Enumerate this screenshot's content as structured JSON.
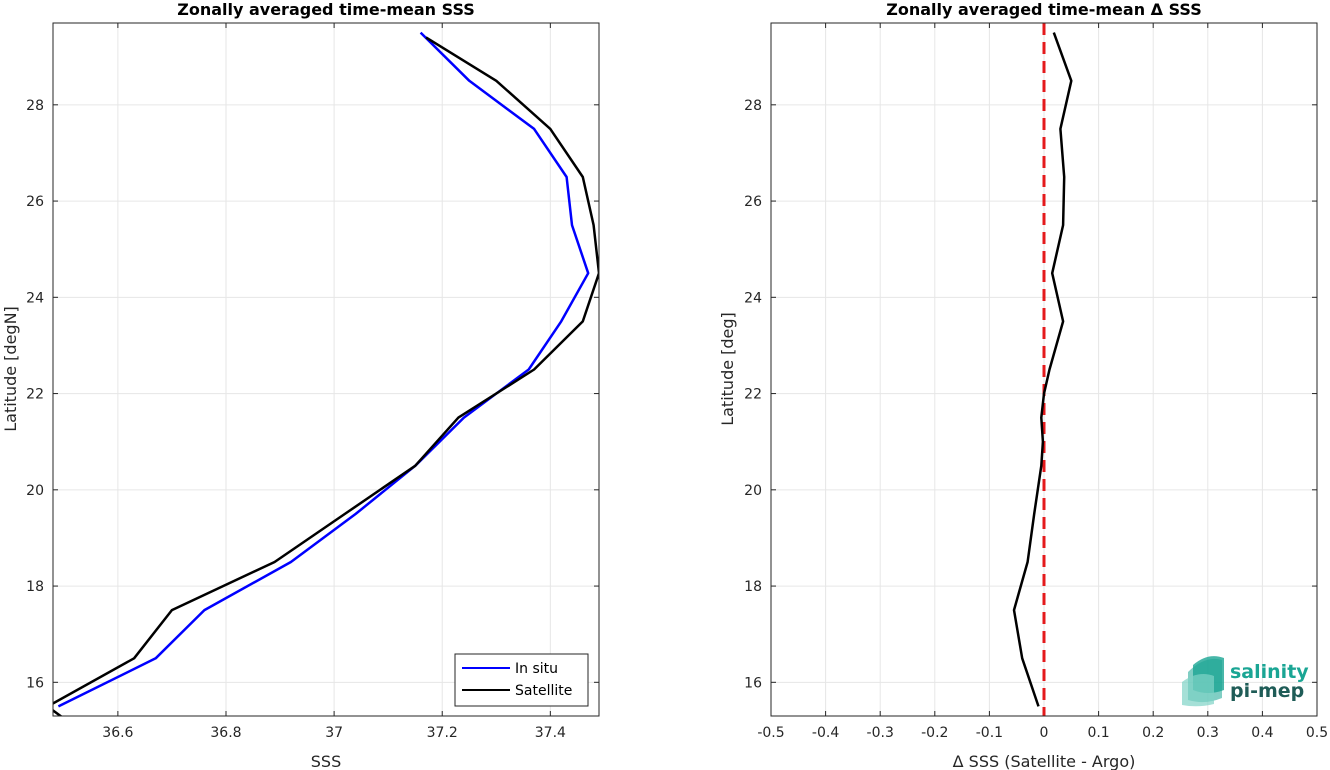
{
  "colors": {
    "in_situ": "#0000ff",
    "satellite": "#000000",
    "zero_line": "#e41a1c",
    "grid": "#e6e6e6",
    "axis": "#262626",
    "logo_teal": "#1aa594",
    "logo_dark": "#1f5c57"
  },
  "logo": {
    "line1": "salinity",
    "line2": "pi-mep",
    "icon": "salinity-waves-logo"
  },
  "chart_data": [
    {
      "type": "line",
      "title": "Zonally averaged time-mean SSS",
      "xlabel": "SSS",
      "ylabel": "Latitude [degN]",
      "xlim": [
        36.48,
        37.49
      ],
      "ylim": [
        15.3,
        29.7
      ],
      "xticks": [
        36.6,
        36.8,
        37,
        37.2,
        37.4
      ],
      "xtick_labels": [
        "36.6",
        "36.8",
        "37",
        "37.2",
        "37.4"
      ],
      "yticks": [
        16,
        18,
        20,
        22,
        24,
        26,
        28
      ],
      "ytick_labels": [
        "16",
        "18",
        "20",
        "22",
        "24",
        "26",
        "28"
      ],
      "grid": true,
      "legend_position": "bottom-right",
      "series": [
        {
          "name": "In situ",
          "color": "#0000ff",
          "x": [
            36.49,
            36.67,
            36.76,
            36.92,
            37.04,
            37.15,
            37.24,
            37.36,
            37.42,
            37.47,
            37.44,
            37.43,
            37.37,
            37.25,
            37.16
          ],
          "y": [
            15.5,
            16.5,
            17.5,
            18.5,
            19.5,
            20.5,
            21.5,
            22.5,
            23.5,
            24.5,
            25.5,
            26.5,
            27.5,
            28.5,
            29.5
          ]
        },
        {
          "name": "Satellite",
          "color": "#000000",
          "x": [
            36.5,
            36.47,
            36.63,
            36.7,
            36.89,
            37.02,
            37.15,
            37.23,
            37.37,
            37.46,
            37.49,
            37.48,
            37.46,
            37.4,
            37.3,
            37.17
          ],
          "y": [
            15.25,
            15.5,
            16.5,
            17.5,
            18.5,
            19.5,
            20.5,
            21.5,
            22.5,
            23.5,
            24.5,
            25.5,
            26.5,
            27.5,
            28.5,
            29.4
          ]
        }
      ]
    },
    {
      "type": "line",
      "title": "Zonally averaged time-mean Δ SSS",
      "xlabel": "Δ SSS (Satellite - Argo)",
      "ylabel": "Latitude [deg]",
      "xlim": [
        -0.5,
        0.5
      ],
      "ylim": [
        15.3,
        29.7
      ],
      "xticks": [
        -0.5,
        -0.4,
        -0.3,
        -0.2,
        -0.1,
        0,
        0.1,
        0.2,
        0.3,
        0.4,
        0.5
      ],
      "xtick_labels": [
        "-0.5",
        "-0.4",
        "-0.3",
        "-0.2",
        "-0.1",
        "0",
        "0.1",
        "0.2",
        "0.3",
        "0.4",
        "0.5"
      ],
      "yticks": [
        16,
        18,
        20,
        22,
        24,
        26,
        28
      ],
      "ytick_labels": [
        "16",
        "18",
        "20",
        "22",
        "24",
        "26",
        "28"
      ],
      "grid": true,
      "series": [
        {
          "color": "#000000",
          "x": [
            -0.01,
            -0.04,
            -0.055,
            -0.03,
            -0.018,
            -0.005,
            -0.002,
            -0.005,
            0,
            0.01,
            0.035,
            0.015,
            0.035,
            0.037,
            0.03,
            0.05,
            0.018
          ],
          "y": [
            15.5,
            16.5,
            17.5,
            18.5,
            19.5,
            20.5,
            21,
            21.5,
            22,
            22.5,
            23.5,
            24.5,
            25.5,
            26.5,
            27.5,
            28.5,
            29.5
          ]
        }
      ],
      "reference_lines": [
        {
          "axis": "x",
          "value": 0,
          "color": "#e41a1c",
          "style": "dashed"
        }
      ]
    }
  ]
}
